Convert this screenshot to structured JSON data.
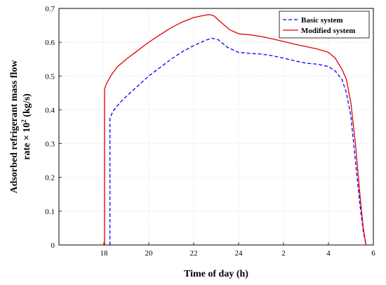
{
  "chart_data": {
    "type": "line",
    "title": "",
    "xlabel": "Time of day (h)",
    "ylabel_line1": "Adsorbed refrigerant mass flow",
    "ylabel_line2_prefix": "rate × 10",
    "ylabel_line2_sup": "2",
    "ylabel_line2_suffix": " (kg/s)",
    "x_unwrapped_ticks": [
      18,
      20,
      22,
      24,
      26,
      28,
      30
    ],
    "x_tick_labels": [
      "18",
      "20",
      "22",
      "24",
      "2",
      "4",
      "6"
    ],
    "xlim": [
      16,
      30
    ],
    "ylim": [
      0,
      0.7
    ],
    "y_ticks": [
      0,
      0.1,
      0.2,
      0.3,
      0.4,
      0.5,
      0.6,
      0.7
    ],
    "y_tick_labels": [
      "0",
      "0.1",
      "0.2",
      "0.3",
      "0.4",
      "0.5",
      "0.6",
      "0.7"
    ],
    "grid": true,
    "legend_position": "top-right",
    "series": [
      {
        "name": "Basic system",
        "color": "#0000ff",
        "style": "dashed",
        "x": [
          18.27,
          18.27,
          18.4,
          18.7,
          19.0,
          19.5,
          20.0,
          20.5,
          21.0,
          21.5,
          22.0,
          22.5,
          22.8,
          23.1,
          23.5,
          24.0,
          24.5,
          25.0,
          25.5,
          26.0,
          26.5,
          27.0,
          27.5,
          28.0,
          28.3,
          28.6,
          28.8,
          29.0,
          29.2,
          29.4,
          29.55,
          29.67
        ],
        "y": [
          0,
          0.375,
          0.395,
          0.42,
          0.44,
          0.47,
          0.5,
          0.525,
          0.55,
          0.572,
          0.59,
          0.605,
          0.612,
          0.607,
          0.585,
          0.57,
          0.567,
          0.565,
          0.56,
          0.553,
          0.545,
          0.538,
          0.535,
          0.528,
          0.515,
          0.49,
          0.45,
          0.38,
          0.25,
          0.12,
          0.04,
          0
        ]
      },
      {
        "name": "Modified system",
        "color": "#e00000",
        "style": "solid",
        "x": [
          18.03,
          18.03,
          18.1,
          18.3,
          18.6,
          19.0,
          19.5,
          20.0,
          20.5,
          21.0,
          21.5,
          22.0,
          22.5,
          22.7,
          22.9,
          23.2,
          23.6,
          24.0,
          24.5,
          25.0,
          25.5,
          26.0,
          26.5,
          27.0,
          27.5,
          28.0,
          28.3,
          28.6,
          28.8,
          29.0,
          29.2,
          29.4,
          29.55,
          29.67
        ],
        "y": [
          0,
          0.46,
          0.475,
          0.5,
          0.527,
          0.55,
          0.575,
          0.6,
          0.622,
          0.643,
          0.66,
          0.673,
          0.68,
          0.682,
          0.678,
          0.66,
          0.637,
          0.625,
          0.622,
          0.617,
          0.61,
          0.602,
          0.594,
          0.587,
          0.58,
          0.57,
          0.553,
          0.52,
          0.49,
          0.42,
          0.3,
          0.15,
          0.05,
          0
        ]
      }
    ]
  }
}
